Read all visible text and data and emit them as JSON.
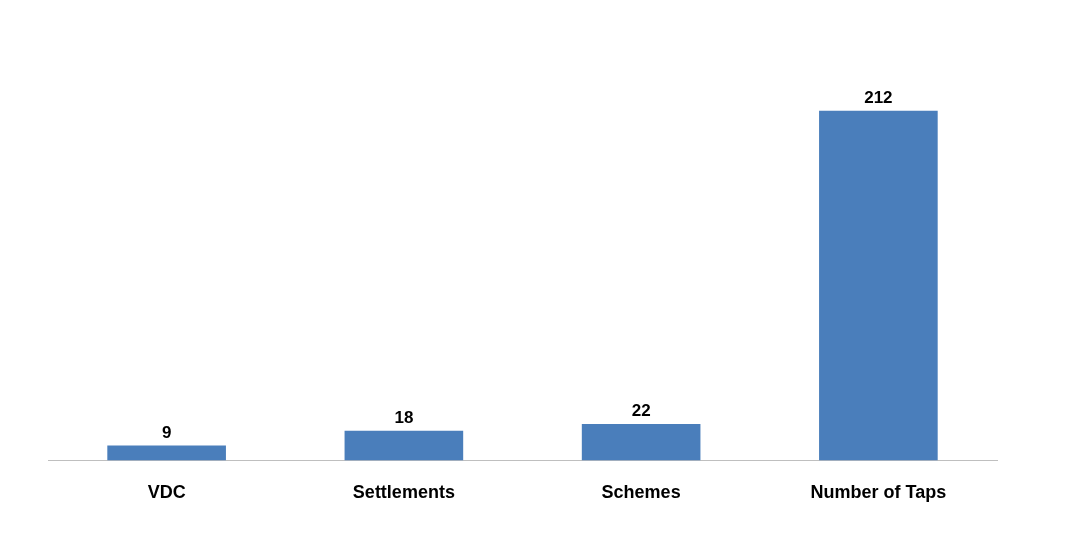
{
  "chart_data": {
    "type": "bar",
    "categories": [
      "VDC",
      "Settlements",
      "Schemes",
      "Number of Taps"
    ],
    "values": [
      9,
      18,
      22,
      212
    ],
    "color": "#4a7ebb",
    "data_labels": true,
    "tick_labels": "x",
    "grid": false,
    "legend": false
  }
}
